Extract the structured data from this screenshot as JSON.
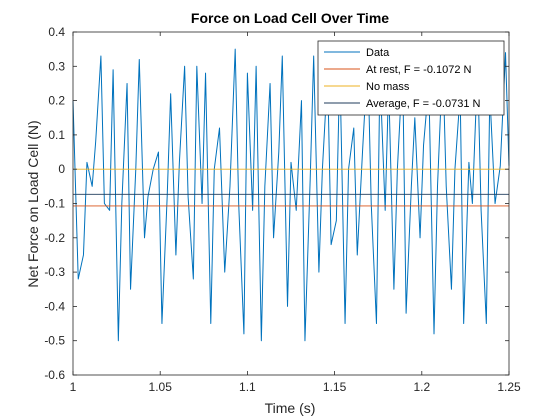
{
  "chart_data": {
    "type": "line",
    "title": "Force on Load Cell Over Time",
    "xlabel": "Time (s)",
    "ylabel": "Net Force on Load Cell (N)",
    "xlim": [
      1,
      1.25
    ],
    "ylim": [
      -0.6,
      0.4
    ],
    "xticks": [
      1,
      1.05,
      1.1,
      1.15,
      1.2,
      1.25
    ],
    "xtick_labels": [
      "1",
      "1.05",
      "1.1",
      "1.15",
      "1.2",
      "1.25"
    ],
    "yticks": [
      -0.6,
      -0.5,
      -0.4,
      -0.3,
      -0.2,
      -0.1,
      0,
      0.1,
      0.2,
      0.3,
      0.4
    ],
    "ytick_labels": [
      "-0.6",
      "-0.5",
      "-0.4",
      "-0.3",
      "-0.2",
      "-0.1",
      "0",
      "0.1",
      "0.2",
      "0.3",
      "0.4"
    ],
    "grid": false,
    "legend_position": "top-right",
    "series": [
      {
        "name": "Data",
        "color": "#0072BD",
        "x": [
          1.0,
          1.003,
          1.006,
          1.008,
          1.011,
          1.013,
          1.016,
          1.018,
          1.021,
          1.023,
          1.026,
          1.028,
          1.031,
          1.033,
          1.036,
          1.038,
          1.041,
          1.043,
          1.046,
          1.049,
          1.051,
          1.054,
          1.056,
          1.059,
          1.061,
          1.064,
          1.066,
          1.069,
          1.071,
          1.074,
          1.076,
          1.079,
          1.081,
          1.084,
          1.087,
          1.09,
          1.093,
          1.095,
          1.098,
          1.1,
          1.103,
          1.105,
          1.108,
          1.11,
          1.113,
          1.115,
          1.118,
          1.12,
          1.123,
          1.125,
          1.128,
          1.131,
          1.133,
          1.136,
          1.138,
          1.141,
          1.143,
          1.146,
          1.148,
          1.151,
          1.153,
          1.156,
          1.158,
          1.161,
          1.163,
          1.166,
          1.169,
          1.171,
          1.174,
          1.176,
          1.179,
          1.181,
          1.184,
          1.186,
          1.189,
          1.191,
          1.194,
          1.196,
          1.199,
          1.201,
          1.204,
          1.207,
          1.209,
          1.212,
          1.214,
          1.217,
          1.219,
          1.222,
          1.224,
          1.227,
          1.229,
          1.232,
          1.234,
          1.237,
          1.239,
          1.242,
          1.245,
          1.248,
          1.25
        ],
        "y": [
          0.2,
          -0.32,
          -0.25,
          0.02,
          -0.05,
          0.08,
          0.33,
          -0.1,
          -0.12,
          0.29,
          -0.5,
          -0.1,
          0.25,
          -0.35,
          0.0,
          0.32,
          -0.2,
          -0.08,
          0.0,
          0.05,
          -0.45,
          -0.08,
          0.22,
          -0.25,
          0.02,
          0.3,
          -0.08,
          -0.32,
          0.3,
          -0.1,
          0.28,
          -0.45,
          0.0,
          0.12,
          -0.3,
          -0.05,
          0.35,
          -0.1,
          -0.48,
          0.28,
          -0.12,
          0.3,
          -0.5,
          -0.05,
          0.25,
          -0.2,
          0.05,
          0.33,
          -0.4,
          0.02,
          -0.12,
          0.2,
          -0.5,
          -0.03,
          0.33,
          -0.3,
          0.0,
          0.28,
          -0.22,
          -0.15,
          0.3,
          -0.45,
          0.0,
          0.12,
          -0.25,
          0.05,
          0.33,
          -0.1,
          -0.45,
          0.28,
          -0.12,
          0.25,
          -0.35,
          0.0,
          0.3,
          -0.42,
          -0.05,
          0.15,
          -0.2,
          0.07,
          0.25,
          -0.48,
          -0.05,
          0.32,
          -0.05,
          -0.35,
          0.0,
          0.22,
          -0.45,
          0.02,
          -0.1,
          0.3,
          -0.12,
          -0.45,
          0.22,
          -0.1,
          0.01,
          0.34,
          0.01
        ]
      },
      {
        "name": "At rest, F = -0.1072 N",
        "color": "#D95319",
        "x": [
          1,
          1.25
        ],
        "y": [
          -0.1072,
          -0.1072
        ]
      },
      {
        "name": "No mass",
        "color": "#EDB120",
        "x": [
          1,
          1.25
        ],
        "y": [
          0,
          0
        ]
      },
      {
        "name": "Average, F = -0.0731 N",
        "color": "#1F3B5B",
        "x": [
          1,
          1.25
        ],
        "y": [
          -0.0731,
          -0.0731
        ]
      }
    ]
  }
}
